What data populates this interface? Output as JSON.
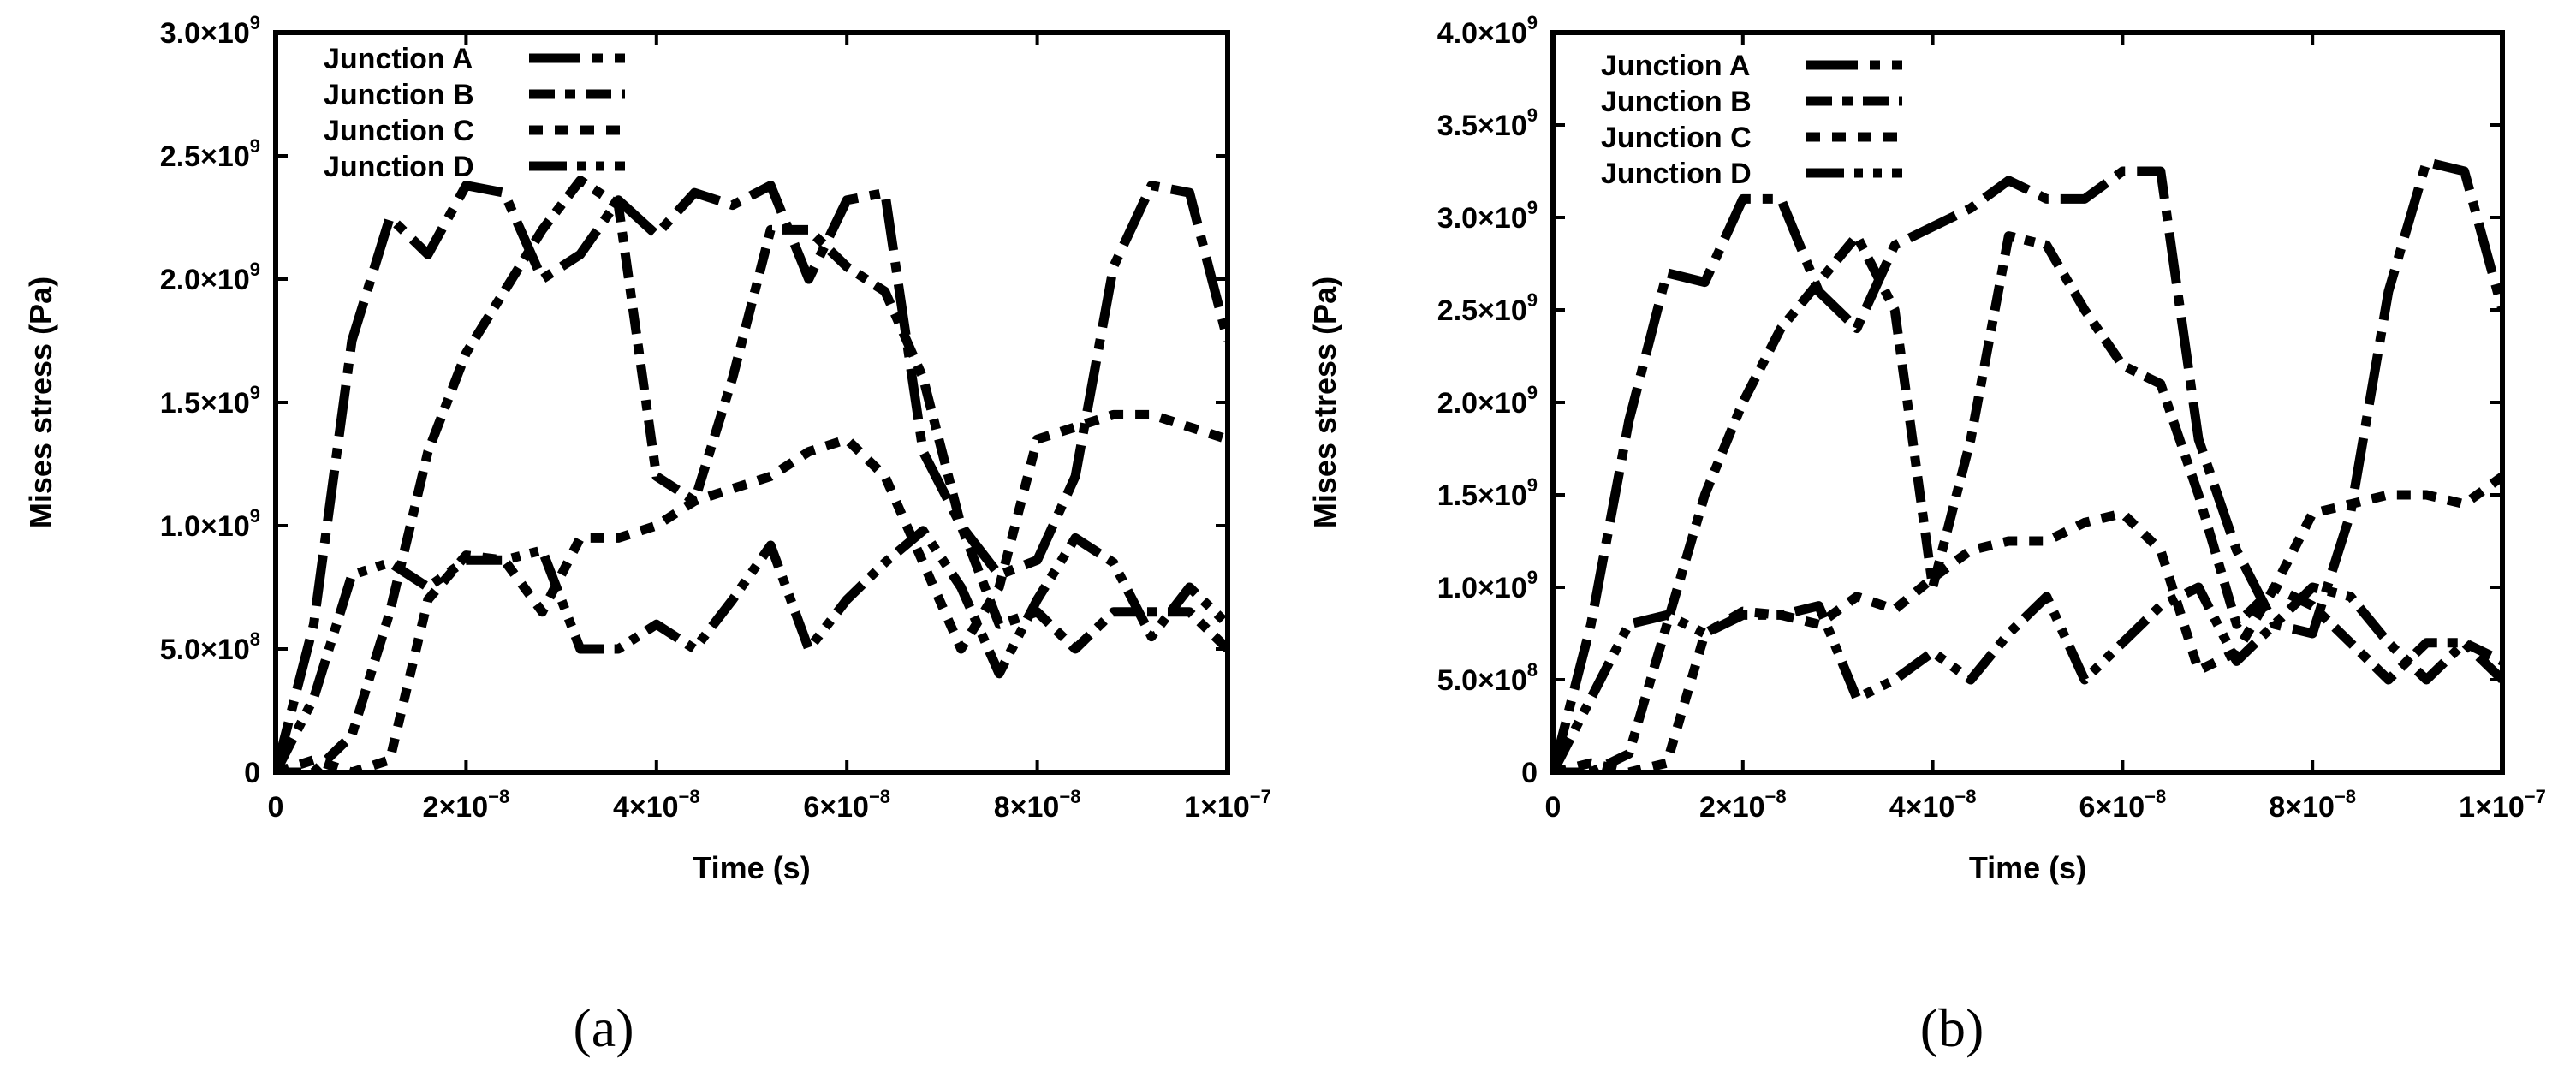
{
  "chart_data": [
    {
      "type": "line",
      "panel_label": "(a)",
      "xlabel": "Time (s)",
      "ylabel": "Mises stress (Pa)",
      "xlim": [
        0,
        1e-07
      ],
      "ylim": [
        0,
        3000000000.0
      ],
      "xticks": [
        {
          "value": 0,
          "mantissa": "0",
          "exponent": ""
        },
        {
          "value": 2e-08,
          "mantissa": "2×10",
          "exponent": "−8"
        },
        {
          "value": 4e-08,
          "mantissa": "4×10",
          "exponent": "−8"
        },
        {
          "value": 6e-08,
          "mantissa": "6×10",
          "exponent": "−8"
        },
        {
          "value": 8e-08,
          "mantissa": "8×10",
          "exponent": "−8"
        },
        {
          "value": 1e-07,
          "mantissa": "1×10",
          "exponent": "−7"
        }
      ],
      "yticks": [
        {
          "value": 0,
          "mantissa": "0",
          "exponent": ""
        },
        {
          "value": 500000000.0,
          "mantissa": "5.0×10",
          "exponent": "8"
        },
        {
          "value": 1000000000.0,
          "mantissa": "1.0×10",
          "exponent": "9"
        },
        {
          "value": 1500000000.0,
          "mantissa": "1.5×10",
          "exponent": "9"
        },
        {
          "value": 2000000000.0,
          "mantissa": "2.0×10",
          "exponent": "9"
        },
        {
          "value": 2500000000.0,
          "mantissa": "2.5×10",
          "exponent": "9"
        },
        {
          "value": 3000000000.0,
          "mantissa": "3.0×10",
          "exponent": "9"
        }
      ],
      "legend_position": "top-left",
      "series": [
        {
          "name": "Junction A",
          "dash": "A",
          "x": [
            0,
            4e-09,
            8e-09,
            1.2e-08,
            1.6e-08,
            2e-08,
            2.4e-08,
            2.8e-08,
            3.2e-08,
            3.6e-08,
            4e-08,
            4.4e-08,
            4.8e-08,
            5.2e-08,
            5.6e-08,
            6e-08,
            6.4e-08,
            6.8e-08,
            7.2e-08,
            7.6e-08,
            8e-08,
            8.4e-08,
            8.8e-08,
            9.2e-08,
            9.6e-08,
            1e-07
          ],
          "y": [
            0,
            600000000.0,
            1750000000.0,
            2250000000.0,
            2100000000.0,
            2380000000.0,
            2350000000.0,
            2000000000.0,
            2100000000.0,
            2320000000.0,
            2180000000.0,
            2350000000.0,
            2300000000.0,
            2380000000.0,
            2000000000.0,
            2320000000.0,
            2350000000.0,
            1300000000.0,
            1000000000.0,
            800000000.0,
            860000000.0,
            1200000000.0,
            2050000000.0,
            2380000000.0,
            2350000000.0,
            1750000000.0
          ]
        },
        {
          "name": "Junction B",
          "dash": "B",
          "x": [
            0,
            4e-09,
            8e-09,
            1.2e-08,
            1.6e-08,
            2e-08,
            2.4e-08,
            2.8e-08,
            3.2e-08,
            3.6e-08,
            4e-08,
            4.4e-08,
            4.8e-08,
            5.2e-08,
            5.6e-08,
            6e-08,
            6.4e-08,
            6.8e-08,
            7.2e-08,
            7.6e-08,
            8e-08,
            8.4e-08,
            8.8e-08,
            9.2e-08,
            9.6e-08,
            1e-07
          ],
          "y": [
            0,
            0,
            150000000.0,
            650000000.0,
            1300000000.0,
            1700000000.0,
            1950000000.0,
            2200000000.0,
            2400000000.0,
            2300000000.0,
            1200000000.0,
            1100000000.0,
            1600000000.0,
            2200000000.0,
            2200000000.0,
            2050000000.0,
            1950000000.0,
            1600000000.0,
            1000000000.0,
            600000000.0,
            650000000.0,
            500000000.0,
            650000000.0,
            650000000.0,
            650000000.0,
            500000000.0
          ]
        },
        {
          "name": "Junction C",
          "dash": "C",
          "x": [
            0,
            4e-09,
            8e-09,
            1.2e-08,
            1.6e-08,
            2e-08,
            2.4e-08,
            2.8e-08,
            3.2e-08,
            3.6e-08,
            4e-08,
            4.4e-08,
            4.8e-08,
            5.2e-08,
            5.6e-08,
            6e-08,
            6.4e-08,
            6.8e-08,
            7.2e-08,
            7.6e-08,
            8e-08,
            8.4e-08,
            8.8e-08,
            9.2e-08,
            9.6e-08,
            1e-07
          ],
          "y": [
            0,
            50000000.0,
            0,
            50000000.0,
            700000000.0,
            880000000.0,
            860000000.0,
            650000000.0,
            950000000.0,
            950000000.0,
            1000000000.0,
            1100000000.0,
            1150000000.0,
            1200000000.0,
            1300000000.0,
            1350000000.0,
            1200000000.0,
            850000000.0,
            500000000.0,
            750000000.0,
            1350000000.0,
            1400000000.0,
            1450000000.0,
            1450000000.0,
            1400000000.0,
            1350000000.0
          ]
        },
        {
          "name": "Junction D",
          "dash": "D",
          "x": [
            0,
            4e-09,
            8e-09,
            1.2e-08,
            1.6e-08,
            2e-08,
            2.4e-08,
            2.8e-08,
            3.2e-08,
            3.6e-08,
            4e-08,
            4.4e-08,
            4.8e-08,
            5.2e-08,
            5.6e-08,
            6e-08,
            6.4e-08,
            6.8e-08,
            7.2e-08,
            7.6e-08,
            8e-08,
            8.4e-08,
            8.8e-08,
            9.2e-08,
            9.6e-08,
            1e-07
          ],
          "y": [
            0,
            300000000.0,
            800000000.0,
            850000000.0,
            750000000.0,
            860000000.0,
            860000000.0,
            900000000.0,
            500000000.0,
            500000000.0,
            600000000.0,
            500000000.0,
            700000000.0,
            920000000.0,
            500000000.0,
            700000000.0,
            850000000.0,
            980000000.0,
            750000000.0,
            400000000.0,
            700000000.0,
            950000000.0,
            850000000.0,
            550000000.0,
            750000000.0,
            600000000.0
          ]
        }
      ]
    },
    {
      "type": "line",
      "panel_label": "(b)",
      "xlabel": "Time (s)",
      "ylabel": "Mises stress (Pa)",
      "xlim": [
        0,
        1e-07
      ],
      "ylim": [
        0,
        4000000000.0
      ],
      "xticks": [
        {
          "value": 0,
          "mantissa": "0",
          "exponent": ""
        },
        {
          "value": 2e-08,
          "mantissa": "2×10",
          "exponent": "−8"
        },
        {
          "value": 4e-08,
          "mantissa": "4×10",
          "exponent": "−8"
        },
        {
          "value": 6e-08,
          "mantissa": "6×10",
          "exponent": "−8"
        },
        {
          "value": 8e-08,
          "mantissa": "8×10",
          "exponent": "−8"
        },
        {
          "value": 1e-07,
          "mantissa": "1×10",
          "exponent": "−7"
        }
      ],
      "yticks": [
        {
          "value": 0,
          "mantissa": "0",
          "exponent": ""
        },
        {
          "value": 500000000.0,
          "mantissa": "5.0×10",
          "exponent": "8"
        },
        {
          "value": 1000000000.0,
          "mantissa": "1.0×10",
          "exponent": "9"
        },
        {
          "value": 1500000000.0,
          "mantissa": "1.5×10",
          "exponent": "9"
        },
        {
          "value": 2000000000.0,
          "mantissa": "2.0×10",
          "exponent": "9"
        },
        {
          "value": 2500000000.0,
          "mantissa": "2.5×10",
          "exponent": "9"
        },
        {
          "value": 3000000000.0,
          "mantissa": "3.0×10",
          "exponent": "9"
        },
        {
          "value": 3500000000.0,
          "mantissa": "3.5×10",
          "exponent": "9"
        },
        {
          "value": 4000000000.0,
          "mantissa": "4.0×10",
          "exponent": "9"
        }
      ],
      "legend_position": "top-left",
      "series": [
        {
          "name": "Junction A",
          "dash": "A",
          "x": [
            0,
            4e-09,
            8e-09,
            1.2e-08,
            1.6e-08,
            2e-08,
            2.4e-08,
            2.8e-08,
            3.2e-08,
            3.6e-08,
            4e-08,
            4.4e-08,
            4.8e-08,
            5.2e-08,
            5.6e-08,
            6e-08,
            6.4e-08,
            6.8e-08,
            7.2e-08,
            7.6e-08,
            8e-08,
            8.4e-08,
            8.8e-08,
            9.2e-08,
            9.6e-08,
            1e-07
          ],
          "y": [
            0,
            800000000.0,
            1900000000.0,
            2700000000.0,
            2650000000.0,
            3100000000.0,
            3100000000.0,
            2600000000.0,
            2400000000.0,
            2850000000.0,
            2950000000.0,
            3050000000.0,
            3200000000.0,
            3100000000.0,
            3100000000.0,
            3250000000.0,
            3250000000.0,
            1800000000.0,
            1200000000.0,
            800000000.0,
            750000000.0,
            1400000000.0,
            2600000000.0,
            3300000000.0,
            3250000000.0,
            2500000000.0
          ]
        },
        {
          "name": "Junction B",
          "dash": "B",
          "x": [
            0,
            4e-09,
            8e-09,
            1.2e-08,
            1.6e-08,
            2e-08,
            2.4e-08,
            2.8e-08,
            3.2e-08,
            3.6e-08,
            4e-08,
            4.4e-08,
            4.8e-08,
            5.2e-08,
            5.6e-08,
            6e-08,
            6.4e-08,
            6.8e-08,
            7.2e-08,
            7.6e-08,
            8e-08,
            8.4e-08,
            8.8e-08,
            9.2e-08,
            9.6e-08,
            1e-07
          ],
          "y": [
            0,
            0,
            100000000.0,
            800000000.0,
            1500000000.0,
            2000000000.0,
            2400000000.0,
            2650000000.0,
            2900000000.0,
            2500000000.0,
            1000000000.0,
            1800000000.0,
            2900000000.0,
            2850000000.0,
            2500000000.0,
            2200000000.0,
            2100000000.0,
            1500000000.0,
            800000000.0,
            1000000000.0,
            900000000.0,
            700000000.0,
            500000000.0,
            700000000.0,
            700000000.0,
            600000000.0
          ]
        },
        {
          "name": "Junction C",
          "dash": "C",
          "x": [
            0,
            4e-09,
            8e-09,
            1.2e-08,
            1.6e-08,
            2e-08,
            2.4e-08,
            2.8e-08,
            3.2e-08,
            3.6e-08,
            4e-08,
            4.4e-08,
            4.8e-08,
            5.2e-08,
            5.6e-08,
            6e-08,
            6.4e-08,
            6.8e-08,
            7.2e-08,
            7.6e-08,
            8e-08,
            8.4e-08,
            8.8e-08,
            9.2e-08,
            9.6e-08,
            1e-07
          ],
          "y": [
            0,
            50000000.0,
            0,
            50000000.0,
            750000000.0,
            870000000.0,
            850000000.0,
            800000000.0,
            950000000.0,
            880000000.0,
            1050000000.0,
            1200000000.0,
            1250000000.0,
            1250000000.0,
            1350000000.0,
            1400000000.0,
            1200000000.0,
            550000000.0,
            650000000.0,
            1000000000.0,
            1400000000.0,
            1450000000.0,
            1500000000.0,
            1500000000.0,
            1450000000.0,
            1600000000.0
          ]
        },
        {
          "name": "Junction D",
          "dash": "D",
          "x": [
            0,
            4e-09,
            8e-09,
            1.2e-08,
            1.6e-08,
            2e-08,
            2.4e-08,
            2.8e-08,
            3.2e-08,
            3.6e-08,
            4e-08,
            4.4e-08,
            4.8e-08,
            5.2e-08,
            5.6e-08,
            6e-08,
            6.4e-08,
            6.8e-08,
            7.2e-08,
            7.6e-08,
            8e-08,
            8.4e-08,
            8.8e-08,
            9.2e-08,
            9.6e-08,
            1e-07
          ],
          "y": [
            0,
            400000000.0,
            800000000.0,
            850000000.0,
            750000000.0,
            850000000.0,
            850000000.0,
            900000000.0,
            400000000.0,
            500000000.0,
            650000000.0,
            500000000.0,
            750000000.0,
            950000000.0,
            500000000.0,
            700000000.0,
            900000000.0,
            1000000000.0,
            600000000.0,
            800000000.0,
            1000000000.0,
            950000000.0,
            700000000.0,
            500000000.0,
            700000000.0,
            500000000.0
          ]
        }
      ]
    }
  ]
}
